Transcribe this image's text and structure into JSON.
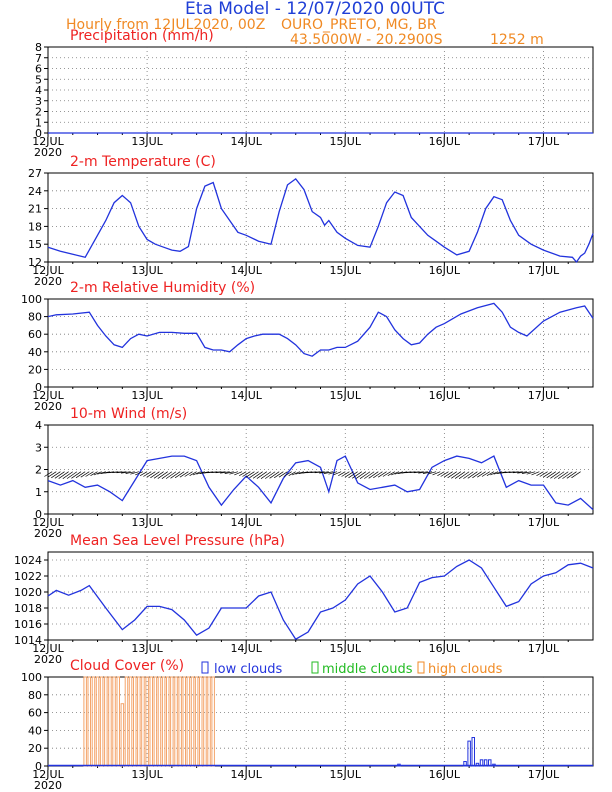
{
  "header": {
    "title": "Eta Model - 12/07/2020 00UTC",
    "line2_left": "Hourly from 12JUL2020, 00Z",
    "location": "OURO_PRETO, MG, BR",
    "coords": "43.5000W - 20.2900S",
    "elevation": "1252  m"
  },
  "colors": {
    "title": "#1f3fd6",
    "subtitle": "#f08a24",
    "panel_title": "#ee2222",
    "series": "#2233dd",
    "wind": "#000000",
    "low_clouds": "#2233dd",
    "middle_clouds": "#22bb22",
    "high_clouds": "#f4a46a"
  },
  "x_axis": {
    "ticks": [
      "12JUL",
      "13JUL",
      "14JUL",
      "15JUL",
      "16JUL",
      "17JUL"
    ],
    "year": "2020",
    "range_hours": [
      0,
      132
    ]
  },
  "chart_data": [
    {
      "id": "precip",
      "type": "line",
      "title": "Precipitation (mm/h)",
      "ylim": [
        0,
        8
      ],
      "yticks": [
        0,
        1,
        2,
        3,
        4,
        5,
        6,
        7,
        8
      ],
      "x": [
        0,
        132
      ],
      "y": [
        0,
        0
      ]
    },
    {
      "id": "temp",
      "type": "line",
      "title": "2-m Temperature (C)",
      "ylim": [
        12,
        27
      ],
      "yticks": [
        12,
        15,
        18,
        21,
        24,
        27
      ],
      "x": [
        0,
        3,
        6,
        9,
        12,
        14,
        16,
        18,
        20,
        22,
        24,
        26,
        28,
        30,
        32,
        34,
        36,
        38,
        40,
        42,
        44,
        46,
        48,
        51,
        54,
        56,
        58,
        60,
        62,
        64,
        66,
        67,
        68,
        70,
        72,
        75,
        78,
        80,
        82,
        84,
        86,
        88,
        90,
        92,
        94,
        96,
        99,
        102,
        104,
        106,
        108,
        110,
        112,
        114,
        117,
        120,
        124,
        127,
        128,
        129,
        130,
        131,
        132
      ],
      "y": [
        14.5,
        13.8,
        13.3,
        12.8,
        16.5,
        19.0,
        22.0,
        23.2,
        22.0,
        18.0,
        15.8,
        15.0,
        14.5,
        14.0,
        13.8,
        14.6,
        21.0,
        24.8,
        25.4,
        21.0,
        19.0,
        17.0,
        16.5,
        15.5,
        15.0,
        20.5,
        25.0,
        26.0,
        24.2,
        20.5,
        19.5,
        18.2,
        19.0,
        17.0,
        16.0,
        14.8,
        14.5,
        18.0,
        22.0,
        23.8,
        23.2,
        19.5,
        18.0,
        16.5,
        15.5,
        14.5,
        13.2,
        13.8,
        17.0,
        21.0,
        23.0,
        22.5,
        19.0,
        16.5,
        15.0,
        14.0,
        13.0,
        12.8,
        12.0,
        13.0,
        13.5,
        15.0,
        16.8
      ]
    },
    {
      "id": "rh",
      "type": "line",
      "title": "2-m Relative Humidity (%)",
      "ylim": [
        0,
        100
      ],
      "yticks": [
        0,
        20,
        40,
        60,
        80,
        100
      ],
      "x": [
        0,
        2,
        6,
        10,
        12,
        14,
        16,
        18,
        20,
        22,
        24,
        27,
        30,
        33,
        36,
        38,
        40,
        42,
        44,
        46,
        48,
        50,
        52,
        54,
        56,
        58,
        60,
        62,
        64,
        66,
        68,
        70,
        72,
        75,
        78,
        80,
        82,
        84,
        86,
        88,
        90,
        92,
        94,
        96,
        100,
        104,
        108,
        110,
        112,
        114,
        116,
        120,
        124,
        128,
        130,
        132
      ],
      "y": [
        80,
        82,
        83,
        85,
        70,
        58,
        48,
        45,
        55,
        60,
        58,
        62,
        62,
        61,
        61,
        45,
        42,
        42,
        40,
        48,
        55,
        58,
        60,
        60,
        60,
        55,
        48,
        38,
        35,
        42,
        42,
        45,
        45,
        52,
        68,
        85,
        80,
        65,
        55,
        48,
        50,
        60,
        68,
        72,
        83,
        90,
        95,
        85,
        68,
        62,
        58,
        75,
        85,
        90,
        92,
        78
      ]
    },
    {
      "id": "wind",
      "type": "line",
      "title": "10-m Wind (m/s)",
      "ylim": [
        0,
        4
      ],
      "yticks": [
        0,
        1,
        2,
        3,
        4
      ],
      "x": [
        0,
        3,
        6,
        9,
        12,
        15,
        18,
        21,
        24,
        27,
        30,
        33,
        36,
        39,
        42,
        45,
        48,
        51,
        54,
        57,
        60,
        63,
        66,
        68,
        70,
        72,
        75,
        78,
        81,
        84,
        87,
        90,
        93,
        96,
        99,
        102,
        105,
        108,
        111,
        114,
        117,
        120,
        123,
        126,
        129,
        132
      ],
      "y": [
        1.5,
        1.3,
        1.5,
        1.2,
        1.3,
        1.0,
        0.6,
        1.5,
        2.4,
        2.5,
        2.6,
        2.6,
        2.4,
        1.2,
        0.4,
        1.1,
        1.7,
        1.2,
        0.5,
        1.6,
        2.3,
        2.4,
        2.1,
        1.0,
        2.4,
        2.6,
        1.4,
        1.1,
        1.2,
        1.3,
        1.0,
        1.1,
        2.1,
        2.4,
        2.6,
        2.5,
        2.3,
        2.6,
        1.2,
        1.5,
        1.3,
        1.3,
        0.5,
        0.4,
        0.7,
        0.2
      ]
    },
    {
      "id": "mslp",
      "type": "line",
      "title": "Mean Sea Level Pressure (hPa)",
      "ylim": [
        1014,
        1025
      ],
      "yticks": [
        1014,
        1016,
        1018,
        1020,
        1022,
        1024
      ],
      "x": [
        0,
        2,
        5,
        8,
        10,
        14,
        18,
        21,
        24,
        27,
        30,
        33,
        36,
        39,
        42,
        45,
        48,
        51,
        54,
        57,
        60,
        63,
        66,
        69,
        72,
        75,
        78,
        81,
        84,
        87,
        90,
        93,
        96,
        99,
        102,
        105,
        108,
        111,
        114,
        117,
        120,
        123,
        126,
        129,
        132
      ],
      "y": [
        1019.5,
        1020.2,
        1019.6,
        1020.2,
        1020.8,
        1018.0,
        1015.3,
        1016.5,
        1018.2,
        1018.2,
        1017.8,
        1016.5,
        1014.6,
        1015.5,
        1018.0,
        1018.0,
        1018.0,
        1019.5,
        1020.0,
        1016.5,
        1014.1,
        1015.0,
        1017.5,
        1018.0,
        1019.0,
        1021.0,
        1022.0,
        1020.0,
        1017.5,
        1018.0,
        1021.2,
        1021.8,
        1022.0,
        1023.2,
        1024.0,
        1023.0,
        1020.6,
        1018.2,
        1018.8,
        1021.0,
        1022.0,
        1022.4,
        1023.4,
        1023.6,
        1023.0
      ]
    },
    {
      "id": "cloud",
      "type": "bar",
      "title": "Cloud Cover (%)",
      "ylim": [
        0,
        100
      ],
      "yticks": [
        0,
        20,
        40,
        60,
        80,
        100
      ],
      "legend": [
        "low clouds",
        "middle clouds",
        "high clouds"
      ],
      "high_x": [
        9,
        10,
        11,
        12,
        13,
        14,
        15,
        16,
        17,
        18,
        19,
        20,
        21,
        22,
        23,
        24,
        25,
        26,
        27,
        28,
        29,
        30,
        31,
        32,
        33,
        34,
        35,
        36,
        37,
        38,
        39,
        40
      ],
      "high_y": [
        100,
        100,
        100,
        100,
        100,
        100,
        100,
        100,
        100,
        70,
        100,
        100,
        100,
        100,
        100,
        100,
        100,
        100,
        100,
        100,
        100,
        100,
        100,
        100,
        100,
        100,
        100,
        100,
        100,
        100,
        100,
        100
      ],
      "low_x": [
        85,
        101,
        102,
        103,
        104,
        105,
        106,
        107,
        108
      ],
      "low_y": [
        2,
        5,
        28,
        32,
        3,
        7,
        7,
        7,
        2
      ]
    }
  ]
}
